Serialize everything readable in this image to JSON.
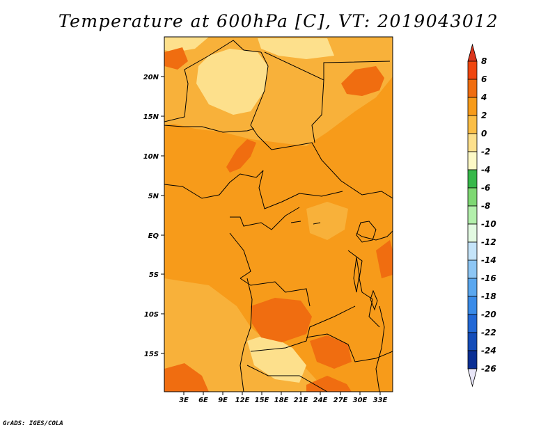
{
  "title": "Temperature at 600hPa [C], VT: 2019043012",
  "credit": "GrADS: IGES/COLA",
  "map": {
    "lat_labels": [
      "20N",
      "15N",
      "10N",
      "5N",
      "EQ",
      "5S",
      "10S",
      "15S"
    ],
    "lon_labels": [
      "3E",
      "6E",
      "9E",
      "12E",
      "15E",
      "18E",
      "21E",
      "24E",
      "27E",
      "30E",
      "33E"
    ],
    "field_colors": {
      "light": "#fde08c",
      "mid": "#f8b13a",
      "base": "#f79b1a",
      "dark": "#f06d10"
    }
  },
  "legend": {
    "labels": [
      "8",
      "6",
      "4",
      "2",
      "0",
      "-2",
      "-4",
      "-6",
      "-8",
      "-10",
      "-12",
      "-14",
      "-16",
      "-18",
      "-20",
      "-22",
      "-24",
      "-26"
    ],
    "colors": [
      "#d9351c",
      "#f0460f",
      "#f06d10",
      "#f79b1a",
      "#fbbe46",
      "#fde08c",
      "#fdf9c6",
      "#37b84a",
      "#7ed873",
      "#b3f0ac",
      "#e3fae2",
      "#c5e4f9",
      "#8dc6f4",
      "#5aa7ef",
      "#3a8be8",
      "#2268d6",
      "#134cb9",
      "#0a2f94",
      "#101673",
      "#e8e6f8"
    ]
  }
}
